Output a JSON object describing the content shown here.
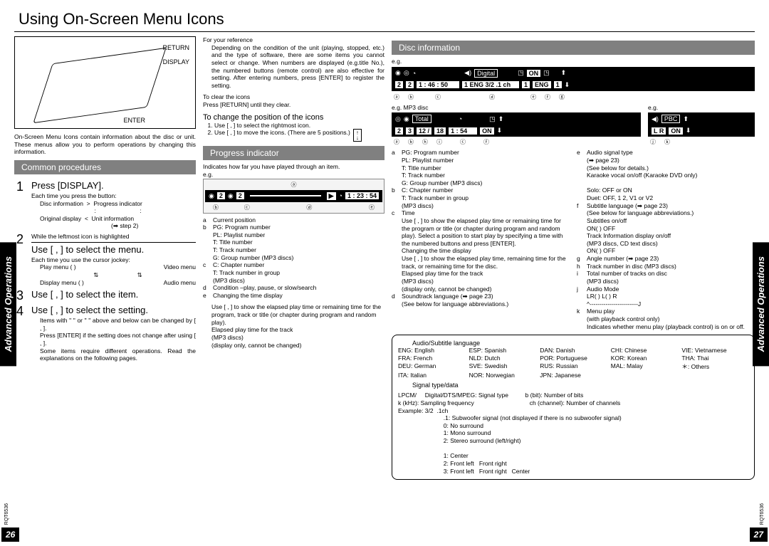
{
  "title": "Using On-Screen Menu Icons",
  "tab_left": "Advanced Operations",
  "tab_right": "Advanced Operations",
  "page_left": "26",
  "page_right": "27",
  "doc_code": "RQT6536",
  "col1": {
    "device_labels": {
      "return": "RETURN",
      "display": "DISPLAY",
      "enter": "ENTER"
    },
    "device_caption": "On-Screen Menu Icons contain information about the disc or unit. These menus allow you to perform operations by changing this information.",
    "head_common": "Common procedures",
    "step1_title": "Press [DISPLAY].",
    "step1_sub": "Each time you press the button:",
    "step1_a": "Disc information",
    "step1_b": "Progress indicator",
    "step1_c": "Original display",
    "step1_d": "Unit information",
    "step1_e": "(➡ step 2)",
    "step2_note": "While the leftmost icon is highlighted",
    "step2_title": "Use [   ,   ] to select the menu.",
    "step2_sub": "Each time you use the cursor jockey:",
    "step2_items": [
      "Play menu ( )",
      "Video menu",
      "Display menu ( )",
      "Audio menu"
    ],
    "step3_title": "Use [   ,   ] to select the item.",
    "step4_title": "Use [  ,  ] to select the setting.",
    "step4_note1": "Items with \"   \" or \"   \" above and below can be changed by [   ,   ].",
    "step4_note2": "Press [ENTER] if the setting does not change after using [   ,   ].",
    "step4_note3": "Some items require different operations. Read the explanations on the following pages."
  },
  "col2": {
    "ref_head": "For your reference",
    "ref_body": "Depending on the condition of the unit (playing, stopped, etc.) and the type of software, there are some items you cannot select or change. When numbers are displayed (e.g.title No.), the numbered buttons (remote control) are also effective for setting. After entering numbers, press [ENTER] to register the setting.",
    "clear_head": "To clear the icons",
    "clear_body": "Press [RETURN] until they clear.",
    "pos_head": "To change the position of the icons",
    "pos_1": "Use [   ,   ] to select the rightmost icon.",
    "pos_2": "Use [   ,   ] to move the icons. (There are 5 positions.)",
    "head_progress": "Progress indicator",
    "prog_intro": "Indicates how far you have played through an item.",
    "eg": "e.g.",
    "progress_osd": [
      "2",
      "2",
      "▶",
      "1 : 23 : 54"
    ],
    "legend": {
      "a": "Current position",
      "b": "PG: Program number\nPL: Playlist number\nT: Title number\nT: Track number\nG: Group number          (MP3 discs)",
      "c": "C: Chapter number\nT: Track number in group\n        (MP3 discs)",
      "d": "Condition  –play, pause, or slow/search",
      "e": "Changing the time display"
    },
    "time_body": "Use [   ,   ] to show the elapsed play time or remaining time for the program, track or title (or chapter during program and random play).\nElapsed play time for the track\n        (MP3 discs)\n(display only, cannot be changed)"
  },
  "col3": {
    "head_disc": "Disc information",
    "eg": "e.g.",
    "osd1_items": [
      "2",
      "2",
      "1 : 46 : 50",
      "Digital",
      "1 ENG  3/2 .1 ch",
      "1",
      "ON",
      "ENG",
      "1"
    ],
    "osd1_labels": [
      "ⓐ",
      "ⓑ",
      "ⓒ",
      "ⓓ",
      "ⓔ",
      "ⓕ",
      "ⓖ"
    ],
    "eg_mp3": "e.g. MP3 disc",
    "osd2_head": "Total",
    "osd2_items": [
      "2",
      "3",
      "12 /",
      "18",
      "1 : 54",
      "ON"
    ],
    "osd2_labels": [
      "ⓐ",
      "ⓑ",
      "ⓗ",
      "ⓘ",
      "ⓒ",
      "ⓕ"
    ],
    "osd3_head": "PBC",
    "osd3_items": [
      "L R",
      "ON"
    ],
    "osd3_labels": [
      "ⓙ",
      "ⓚ"
    ],
    "defs_left": [
      {
        "k": "a",
        "v": "PG: Program number\nPL: Playlist number\nT: Title number\nT: Track number\nG: Group number           (MP3 discs)"
      },
      {
        "k": "b",
        "v": "C: Chapter number\nT: Track number in group\n        (MP3 discs)"
      },
      {
        "k": "c",
        "v": "Time\nUse [   ,   ] to show the elapsed play time or remaining time for the program or title (or chapter during program and random play). Select a position to start play by specifying a time with the numbered buttons and press [ENTER].\nChanging the time display\nUse [   ,   ] to show the elapsed play time, remaining time for the track, or remaining time for the disc.\nElapsed play time for the track\n        (MP3 discs)\n(display only, cannot be changed)"
      },
      {
        "k": "d",
        "v": "Soundtrack language              (➡ page 23)\n(See        below for language abbreviations.)"
      }
    ],
    "defs_right": [
      {
        "k": "e",
        "v": "Audio signal type\n(➡ page 23)\n(See       below for details.)\nKaraoke vocal on/off   (Karaoke DVD only)\n\nSolo:   OFF or ON\nDuet:  OFF, 1    2, V1 or V2"
      },
      {
        "k": "f",
        "v": "Subtitle language                     (➡ page 23)\n(See       below for language abbreviations.)\nSubtitles on/off\nON( )     OFF\nTrack Information display on/off\n        (MP3 discs, CD text discs)\nON( )     OFF"
      },
      {
        "k": "g",
        "v": "Angle number                          (➡ page 23)"
      },
      {
        "k": "h",
        "v": "Track number in disc          (MP3 discs)"
      },
      {
        "k": "i",
        "v": "Total number of tracks on disc\n        (MP3 discs)"
      },
      {
        "k": "j",
        "v": "Audio Mode\nLR( )     L( )     R\n^------------------------J"
      },
      {
        "k": "k",
        "v": "Menu play\n(with playback control only)\nIndicates whether menu play (playback control) is on or off."
      }
    ],
    "lang_head": "Audio/Subtitle language",
    "langs": [
      [
        "ENG:",
        "English"
      ],
      [
        "ESP:",
        "Spanish"
      ],
      [
        "DAN:",
        "Danish"
      ],
      [
        "CHI:",
        "Chinese"
      ],
      [
        "VIE:",
        "Vietnamese"
      ],
      [
        "FRA:",
        "French"
      ],
      [
        "NLD:",
        "Dutch"
      ],
      [
        "POR:",
        "Portuguese"
      ],
      [
        "KOR:",
        "Korean"
      ],
      [
        "THA:",
        "Thai"
      ],
      [
        "DEU:",
        "German"
      ],
      [
        "SVE:",
        "Swedish"
      ],
      [
        "RUS:",
        "Russian"
      ],
      [
        "MAL:",
        "Malay"
      ],
      [
        "＊:",
        "Others"
      ],
      [
        "ITA:",
        "Italian"
      ],
      [
        "NOR:",
        "Norwegian"
      ],
      [
        "JPN:",
        "Japanese"
      ],
      [
        "",
        ""
      ],
      [
        "",
        ""
      ]
    ],
    "sig_head": "Signal type/data",
    "sig_lines": [
      "LPCM/     Digital/DTS/MPEG: Signal type          b (bit): Number of bits",
      "k (kHz): Sampling frequency                                 ch (channel): Number of channels",
      "Example: 3/2  .1ch",
      "                           .1: Subwoofer signal (not displayed if there is no subwoofer signal)",
      "                           0: No surround",
      "                           1: Mono surround",
      "                           2: Stereo surround (left/right)",
      "",
      "                           1: Center",
      "                           2: Front left   Front right",
      "                           3: Front left   Front right   Center"
    ]
  }
}
